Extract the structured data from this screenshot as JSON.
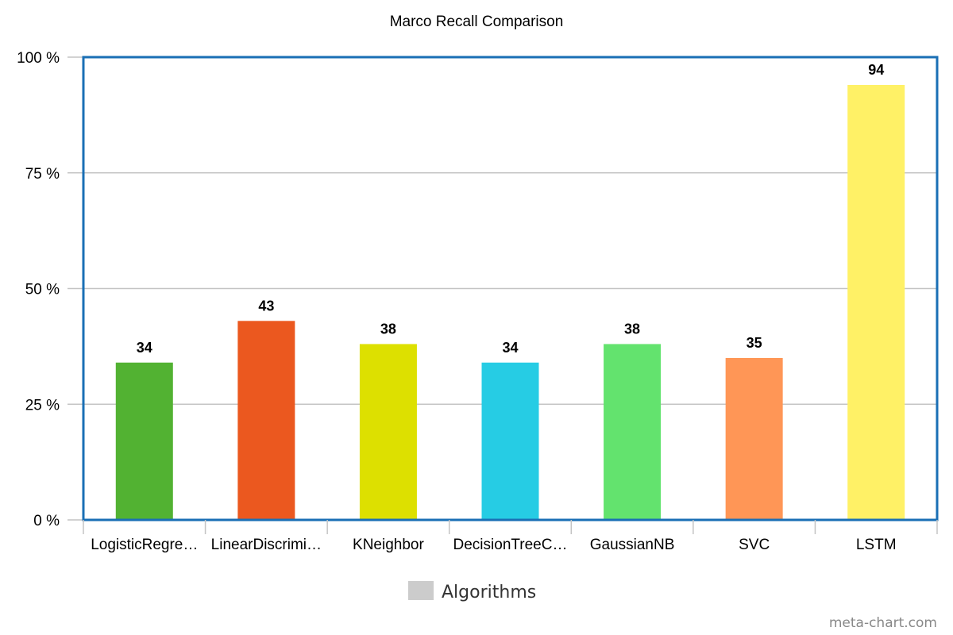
{
  "chart_data": {
    "type": "bar",
    "title": "Marco Recall Comparison",
    "categories": [
      "LogisticRegre…",
      "LinearDiscrimi…",
      "KNeighbor",
      "DecisionTreeC…",
      "GaussianNB",
      "SVC",
      "LSTM"
    ],
    "values": [
      34,
      43,
      38,
      34,
      38,
      35,
      94
    ],
    "data_labels": [
      "34",
      "43",
      "38",
      "34",
      "38",
      "35",
      "94"
    ],
    "colors": [
      "#52b232",
      "#eb581f",
      "#dde000",
      "#26cce4",
      "#63e36e",
      "#ff9656",
      "#fff166"
    ],
    "ylim": [
      0,
      100
    ],
    "yticks": [
      0,
      25,
      50,
      75,
      100
    ],
    "ytick_labels": [
      "0 %",
      "25 %",
      "50 %",
      "75 %",
      "100 %"
    ],
    "grid": true,
    "legend": {
      "position": "bottom-center",
      "label": "Algorithms",
      "swatch_color": "#cccccc"
    },
    "frame_color": "#1a6fb5"
  },
  "watermark": "meta-chart.com"
}
